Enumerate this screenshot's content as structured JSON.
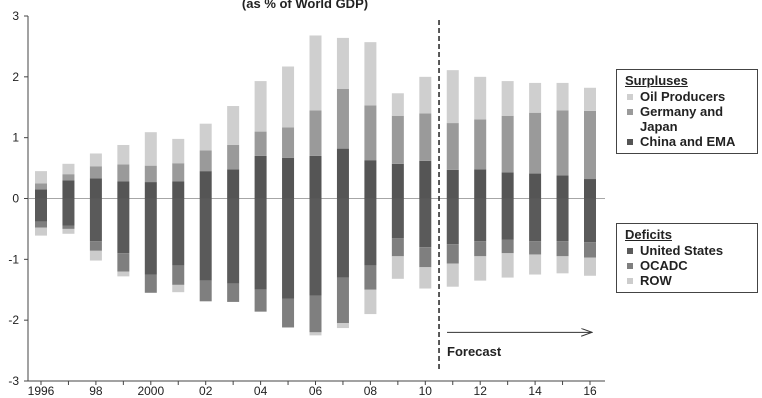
{
  "chart_data": {
    "type": "bar",
    "title": "(as % of World GDP)",
    "ylim": [
      -3,
      3
    ],
    "yticks": [
      -3,
      -2,
      -1,
      0,
      1,
      2,
      3
    ],
    "x_tick_labels": [
      {
        "year": 1996,
        "label": "1996"
      },
      {
        "year": 1998,
        "label": "98"
      },
      {
        "year": 2000,
        "label": "2000"
      },
      {
        "year": 2002,
        "label": "02"
      },
      {
        "year": 2004,
        "label": "04"
      },
      {
        "year": 2006,
        "label": "06"
      },
      {
        "year": 2008,
        "label": "08"
      },
      {
        "year": 2010,
        "label": "10"
      },
      {
        "year": 2012,
        "label": "12"
      },
      {
        "year": 2014,
        "label": "14"
      },
      {
        "year": 2016,
        "label": "16"
      }
    ],
    "categories": [
      1996,
      1997,
      1998,
      1999,
      2000,
      2001,
      2002,
      2003,
      2004,
      2005,
      2006,
      2007,
      2008,
      2009,
      2010,
      2011,
      2012,
      2013,
      2014,
      2015,
      2016
    ],
    "surpluses": {
      "heading": "Surpluses",
      "series": [
        {
          "name": "China and EMA",
          "color": "#555555",
          "values": [
            0.15,
            0.3,
            0.33,
            0.28,
            0.27,
            0.28,
            0.45,
            0.48,
            0.7,
            0.67,
            0.7,
            0.82,
            0.63,
            0.57,
            0.62,
            0.47,
            0.48,
            0.43,
            0.41,
            0.38,
            0.32
          ]
        },
        {
          "name": "Germany and Japan",
          "color": "#9a9a9a",
          "values": [
            0.1,
            0.1,
            0.2,
            0.28,
            0.27,
            0.3,
            0.34,
            0.4,
            0.4,
            0.5,
            0.75,
            0.98,
            0.9,
            0.79,
            0.78,
            0.77,
            0.82,
            0.93,
            1.0,
            1.07,
            1.12
          ]
        },
        {
          "name": "Oil Producers",
          "color": "#cfcfcf",
          "values": [
            0.2,
            0.17,
            0.21,
            0.32,
            0.55,
            0.4,
            0.44,
            0.64,
            0.83,
            1.0,
            1.23,
            0.84,
            1.04,
            0.37,
            0.6,
            0.87,
            0.7,
            0.57,
            0.49,
            0.45,
            0.38
          ]
        }
      ]
    },
    "deficits": {
      "heading": "Deficits",
      "series": [
        {
          "name": "United States",
          "color": "#5a5a5a",
          "values": [
            -0.38,
            -0.45,
            -0.7,
            -0.9,
            -1.25,
            -1.1,
            -1.35,
            -1.4,
            -1.5,
            -1.65,
            -1.6,
            -1.3,
            -1.1,
            -0.65,
            -0.8,
            -0.75,
            -0.7,
            -0.68,
            -0.7,
            -0.7,
            -0.72
          ]
        },
        {
          "name": "OCADC",
          "color": "#7f7f7f",
          "values": [
            -0.1,
            -0.05,
            -0.16,
            -0.3,
            -0.3,
            -0.32,
            -0.34,
            -0.3,
            -0.36,
            -0.47,
            -0.6,
            -0.75,
            -0.4,
            -0.3,
            -0.33,
            -0.32,
            -0.25,
            -0.22,
            -0.22,
            -0.25,
            -0.25
          ]
        },
        {
          "name": "ROW",
          "color": "#cccccc",
          "values": [
            -0.13,
            -0.08,
            -0.16,
            -0.08,
            0,
            -0.12,
            0,
            0,
            0,
            0,
            -0.05,
            -0.08,
            -0.4,
            -0.37,
            -0.35,
            -0.38,
            -0.4,
            -0.4,
            -0.33,
            -0.28,
            -0.3
          ]
        }
      ]
    },
    "forecast": {
      "label": "Forecast",
      "divider_year": 2010.5
    }
  }
}
